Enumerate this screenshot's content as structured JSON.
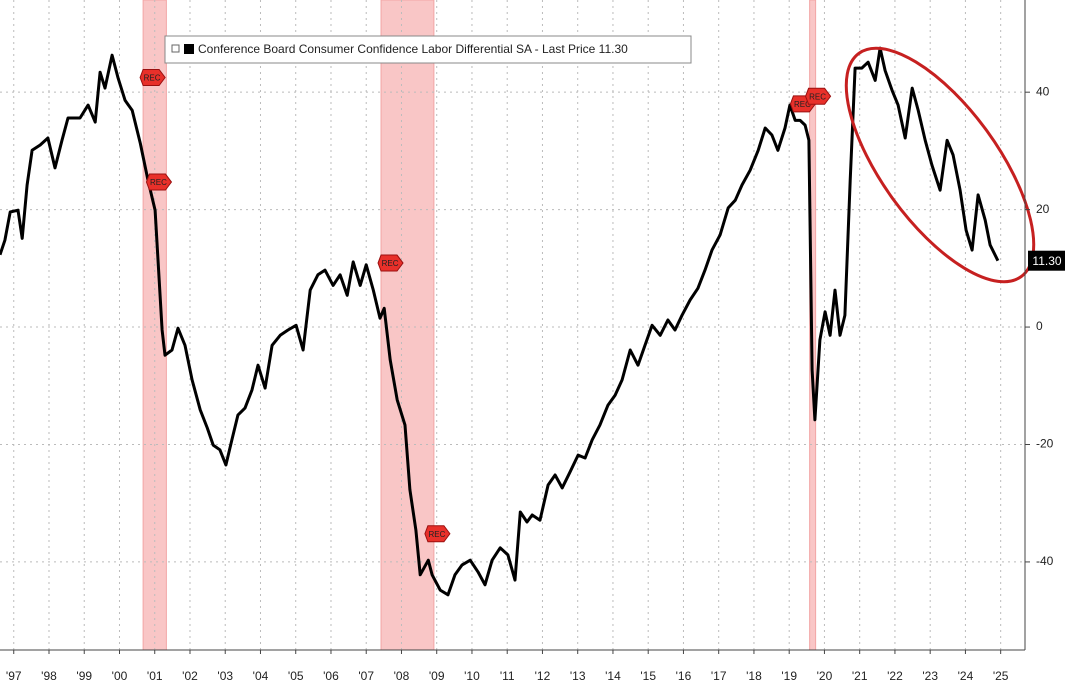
{
  "chart_data": {
    "type": "line",
    "series": [
      {
        "name": "Conference Board Consumer Confidence Labor Differential SA - Last Price 11.30",
        "color": "#000000",
        "x": [
          1997.11,
          1997.25,
          1997.4,
          1997.62,
          1997.74,
          1997.88,
          1998.02,
          1998.25,
          1998.47,
          1998.67,
          1998.87,
          1999.04,
          1999.38,
          1999.61,
          1999.81,
          1999.95,
          2000.09,
          2000.29,
          2000.46,
          2000.66,
          2000.86,
          2001.09,
          2001.31,
          2001.51,
          2001.71,
          2001.79,
          2001.99,
          2002.16,
          2002.36,
          2002.56,
          2002.79,
          2002.99,
          2003.16,
          2003.35,
          2003.52,
          2003.69,
          2003.86,
          2004.06,
          2004.26,
          2004.43,
          2004.63,
          2004.83,
          2005.06,
          2005.28,
          2005.51,
          2005.71,
          2005.91,
          2006.13,
          2006.33,
          2006.56,
          2006.76,
          2006.96,
          2007.13,
          2007.33,
          2007.5,
          2007.7,
          2007.89,
          2008.01,
          2008.18,
          2008.38,
          2008.6,
          2008.74,
          2008.91,
          2009.03,
          2009.26,
          2009.37,
          2009.6,
          2009.82,
          2010.02,
          2010.22,
          2010.45,
          2010.67,
          2010.87,
          2011.07,
          2011.3,
          2011.52,
          2011.72,
          2011.87,
          2012.06,
          2012.21,
          2012.43,
          2012.66,
          2012.86,
          2013.06,
          2013.28,
          2013.51,
          2013.71,
          2013.91,
          2014.13,
          2014.36,
          2014.56,
          2014.76,
          2014.99,
          2015.21,
          2015.41,
          2015.61,
          2015.84,
          2016.06,
          2016.26,
          2016.46,
          2016.69,
          2016.91,
          2017.11,
          2017.31,
          2017.54,
          2017.77,
          2017.97,
          2018.16,
          2018.39,
          2018.62,
          2018.82,
          2019.01,
          2019.18,
          2019.38,
          2019.52,
          2019.67,
          2019.81,
          2019.95,
          2020.06,
          2020.15,
          2020.23,
          2020.37,
          2020.52,
          2020.66,
          2020.8,
          2020.94,
          2021.08,
          2021.23,
          2021.37,
          2021.56,
          2021.74,
          2021.94,
          2022.08,
          2022.22,
          2022.42,
          2022.59,
          2022.79,
          2022.99,
          2023.16,
          2023.36,
          2023.55,
          2023.78,
          2023.98,
          2024.15,
          2024.35,
          2024.52,
          2024.69,
          2024.86,
          2025.06,
          2025.2,
          2025.42
        ],
        "values": [
          12.3,
          14.8,
          19.6,
          19.9,
          15.1,
          24.2,
          30.1,
          31.0,
          32.2,
          27.1,
          31.8,
          35.6,
          35.6,
          37.8,
          34.9,
          43.4,
          40.7,
          46.3,
          42.4,
          38.6,
          36.9,
          31.3,
          25.0,
          19.9,
          -0.5,
          -4.8,
          -3.9,
          -0.2,
          -3.1,
          -9.0,
          -14.1,
          -17.2,
          -20.1,
          -20.9,
          -23.5,
          -19.2,
          -15.0,
          -13.8,
          -10.7,
          -6.5,
          -10.4,
          -3.1,
          -1.4,
          -0.5,
          0.3,
          -3.9,
          6.3,
          8.9,
          9.7,
          7.1,
          8.9,
          5.4,
          11.1,
          7.1,
          10.6,
          6.3,
          1.5,
          3.2,
          -5.6,
          -12.4,
          -16.7,
          -27.7,
          -34.6,
          -42.2,
          -39.7,
          -42.2,
          -44.8,
          -45.6,
          -42.2,
          -40.5,
          -39.7,
          -41.7,
          -43.9,
          -39.7,
          -37.6,
          -38.8,
          -43.1,
          -31.5,
          -33.2,
          -32.0,
          -32.9,
          -26.9,
          -25.2,
          -27.4,
          -24.7,
          -21.8,
          -22.3,
          -19.2,
          -16.7,
          -13.3,
          -11.6,
          -9.0,
          -3.9,
          -6.5,
          -3.1,
          0.3,
          -1.4,
          1.2,
          -0.5,
          2.0,
          4.6,
          6.6,
          9.7,
          13.1,
          15.7,
          20.3,
          21.6,
          24.2,
          26.7,
          30.1,
          33.9,
          32.7,
          30.1,
          33.9,
          37.8,
          35.2,
          35.2,
          34.4,
          31.8,
          -7.3,
          -15.8,
          -2.2,
          2.6,
          -1.4,
          6.3,
          -1.4,
          2.0,
          25.0,
          44.1,
          44.1,
          45.1,
          42.0,
          47.5,
          43.7,
          40.3,
          37.8,
          32.2,
          40.7,
          36.9,
          31.8,
          27.6,
          23.3,
          31.8,
          29.3,
          23.3,
          16.5,
          13.1,
          22.5,
          18.2,
          14.0,
          11.3
        ]
      }
    ],
    "last_price_label": "11.30",
    "recessions": [
      [
        2001.17,
        2001.83
      ],
      [
        2007.92,
        2009.42
      ],
      [
        2020.08,
        2020.25
      ]
    ],
    "recession_color": "#f9c6c6",
    "annotations": [
      {
        "text": "REC",
        "x": 2001.17,
        "y": 42.5
      },
      {
        "text": "REC",
        "x": 2001.35,
        "y": 24.7
      },
      {
        "text": "REC",
        "x": 2007.92,
        "y": 10.9
      },
      {
        "text": "REC",
        "x": 2009.25,
        "y": -35.2
      },
      {
        "text": "REC",
        "x": 2019.62,
        "y": 38.0
      },
      {
        "text": "REC",
        "x": 2020.05,
        "y": 39.3
      }
    ],
    "xlim": [
      1997.11,
      2026.19
    ],
    "xticks": [
      {
        "value": 1997.5,
        "label": "'97"
      },
      {
        "value": 1998.5,
        "label": "'98"
      },
      {
        "value": 1999.5,
        "label": "'99"
      },
      {
        "value": 2000.5,
        "label": "'00"
      },
      {
        "value": 2001.5,
        "label": "'01"
      },
      {
        "value": 2002.5,
        "label": "'02"
      },
      {
        "value": 2003.5,
        "label": "'03"
      },
      {
        "value": 2004.5,
        "label": "'04"
      },
      {
        "value": 2005.5,
        "label": "'05"
      },
      {
        "value": 2006.5,
        "label": "'06"
      },
      {
        "value": 2007.5,
        "label": "'07"
      },
      {
        "value": 2008.5,
        "label": "'08"
      },
      {
        "value": 2009.5,
        "label": "'09"
      },
      {
        "value": 2010.5,
        "label": "'10"
      },
      {
        "value": 2011.5,
        "label": "'11"
      },
      {
        "value": 2012.5,
        "label": "'12"
      },
      {
        "value": 2013.5,
        "label": "'13"
      },
      {
        "value": 2014.5,
        "label": "'14"
      },
      {
        "value": 2015.5,
        "label": "'15"
      },
      {
        "value": 2016.5,
        "label": "'16"
      },
      {
        "value": 2017.5,
        "label": "'17"
      },
      {
        "value": 2018.5,
        "label": "'18"
      },
      {
        "value": 2019.5,
        "label": "'19"
      },
      {
        "value": 2020.5,
        "label": "'20"
      },
      {
        "value": 2021.5,
        "label": "'21"
      },
      {
        "value": 2022.5,
        "label": "'22"
      },
      {
        "value": 2023.5,
        "label": "'23"
      },
      {
        "value": 2024.5,
        "label": "'24"
      },
      {
        "value": 2025.5,
        "label": "'25"
      }
    ],
    "ylim": [
      -55,
      55.7
    ],
    "yticks": [
      -40,
      -20,
      0,
      20,
      40
    ],
    "grid": true,
    "legend": "top-left"
  }
}
